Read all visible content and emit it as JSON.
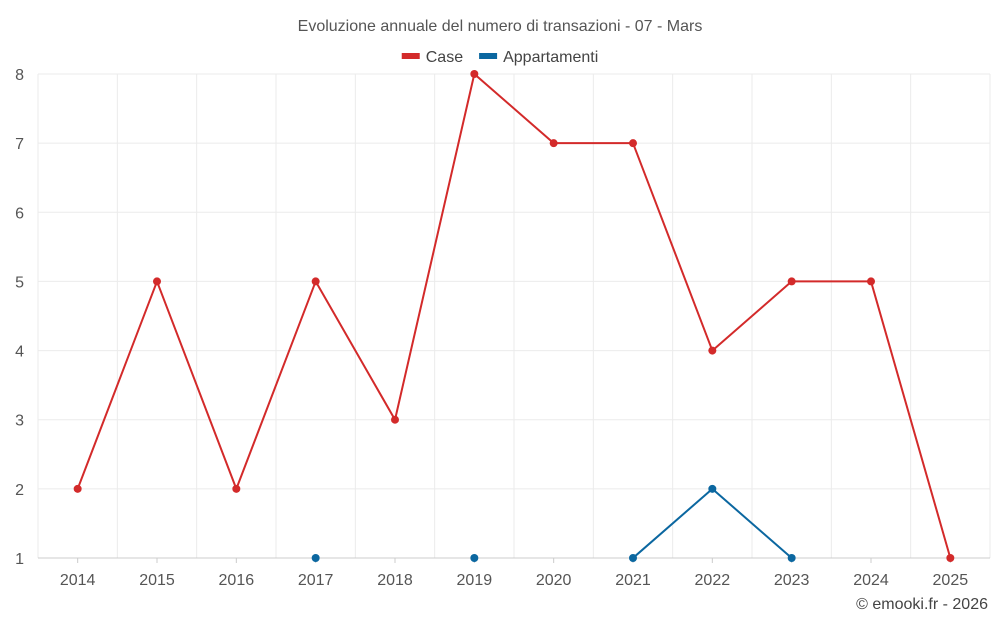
{
  "chart_data": {
    "type": "line",
    "title": "Evoluzione annuale del numero di transazioni - 07 - Mars",
    "categories": [
      "2014",
      "2015",
      "2016",
      "2017",
      "2018",
      "2019",
      "2020",
      "2021",
      "2022",
      "2023",
      "2024",
      "2025"
    ],
    "ylim": [
      1,
      8
    ],
    "yticks": [
      1,
      2,
      3,
      4,
      5,
      6,
      7,
      8
    ],
    "grid": true,
    "legend_position": "top-center",
    "series": [
      {
        "name": "Case",
        "color": "#d32a2a",
        "values": [
          2,
          5,
          2,
          5,
          3,
          8,
          7,
          7,
          4,
          5,
          5,
          1
        ]
      },
      {
        "name": "Appartamenti",
        "color": "#0b67a0",
        "values": [
          null,
          null,
          null,
          1,
          null,
          1,
          null,
          1,
          2,
          1,
          null,
          null
        ]
      }
    ]
  },
  "credit": "© emooki.fr - 2026"
}
